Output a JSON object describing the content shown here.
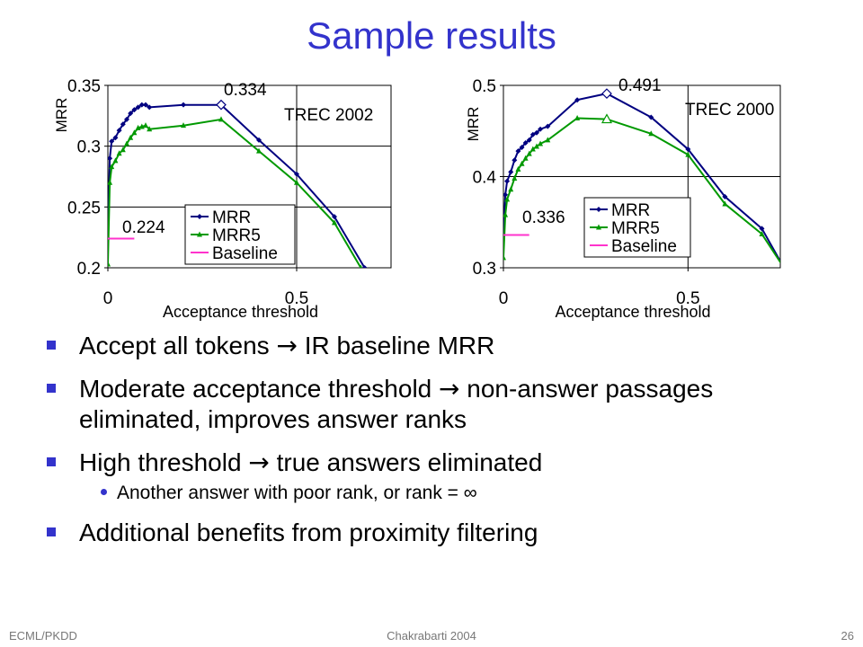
{
  "title": "Sample results",
  "chart_data": [
    {
      "type": "line",
      "title": "TREC 2002",
      "xlabel": "Acceptance threshold",
      "ylabel": "MRR",
      "xlim": [
        0,
        0.75
      ],
      "ylim": [
        0.2,
        0.35
      ],
      "x_ticks": [
        "0",
        "0.5"
      ],
      "y_ticks": [
        "0.2",
        "0.25",
        "0.3",
        "0.35"
      ],
      "legend": [
        "MRR",
        "MRR5",
        "Baseline"
      ],
      "legend_position": "bottom-center",
      "annotations": [
        "0.334",
        "0.224"
      ],
      "series": [
        {
          "name": "MRR",
          "color": "#000080",
          "x": [
            0,
            0.005,
            0.01,
            0.02,
            0.03,
            0.04,
            0.05,
            0.06,
            0.07,
            0.08,
            0.09,
            0.1,
            0.11,
            0.2,
            0.3,
            0.4,
            0.5,
            0.6,
            0.68
          ],
          "y": [
            0.224,
            0.29,
            0.304,
            0.307,
            0.313,
            0.318,
            0.322,
            0.327,
            0.33,
            0.332,
            0.334,
            0.334,
            0.332,
            0.334,
            0.334,
            0.305,
            0.277,
            0.242,
            0.2
          ]
        },
        {
          "name": "MRR5",
          "color": "#009900",
          "x": [
            0,
            0.005,
            0.01,
            0.02,
            0.03,
            0.04,
            0.05,
            0.06,
            0.07,
            0.08,
            0.09,
            0.1,
            0.11,
            0.2,
            0.3,
            0.4,
            0.5,
            0.6,
            0.67
          ],
          "y": [
            0.203,
            0.27,
            0.283,
            0.288,
            0.294,
            0.297,
            0.302,
            0.307,
            0.311,
            0.315,
            0.316,
            0.317,
            0.314,
            0.317,
            0.322,
            0.296,
            0.27,
            0.237,
            0.2
          ]
        },
        {
          "name": "Baseline",
          "color": "#ff33cc",
          "x": [
            0,
            0.07
          ],
          "y": [
            0.224,
            0.224
          ]
        }
      ],
      "grid": true
    },
    {
      "type": "line",
      "title": "TREC 2000",
      "xlabel": "Acceptance threshold",
      "ylabel": "MRR",
      "xlim": [
        0,
        0.75
      ],
      "ylim": [
        0.3,
        0.5
      ],
      "x_ticks": [
        "0",
        "0.5"
      ],
      "y_ticks": [
        "0.3",
        "0.4",
        "0.5"
      ],
      "legend": [
        "MRR",
        "MRR5",
        "Baseline"
      ],
      "legend_position": "bottom-right",
      "annotations": [
        "0.491",
        "0.336"
      ],
      "series": [
        {
          "name": "MRR",
          "color": "#000080",
          "x": [
            0,
            0.005,
            0.01,
            0.02,
            0.03,
            0.04,
            0.05,
            0.06,
            0.07,
            0.08,
            0.09,
            0.1,
            0.12,
            0.2,
            0.28,
            0.4,
            0.5,
            0.6,
            0.7,
            0.76
          ],
          "y": [
            0.336,
            0.38,
            0.395,
            0.405,
            0.418,
            0.428,
            0.432,
            0.437,
            0.44,
            0.446,
            0.448,
            0.452,
            0.455,
            0.484,
            0.491,
            0.465,
            0.43,
            0.378,
            0.343,
            0.3
          ]
        },
        {
          "name": "MRR5",
          "color": "#009900",
          "x": [
            0,
            0.005,
            0.01,
            0.02,
            0.03,
            0.04,
            0.05,
            0.06,
            0.07,
            0.08,
            0.09,
            0.1,
            0.12,
            0.2,
            0.28,
            0.4,
            0.5,
            0.6,
            0.7,
            0.76
          ],
          "y": [
            0.311,
            0.358,
            0.375,
            0.386,
            0.398,
            0.408,
            0.414,
            0.42,
            0.425,
            0.43,
            0.433,
            0.436,
            0.44,
            0.464,
            0.463,
            0.447,
            0.424,
            0.37,
            0.337,
            0.3
          ]
        },
        {
          "name": "Baseline",
          "color": "#ff33cc",
          "x": [
            0,
            0.07
          ],
          "y": [
            0.336,
            0.336
          ]
        }
      ],
      "grid": true
    }
  ],
  "bullets": [
    {
      "pre": "Accept all tokens ",
      "arrow": "→",
      "post": " IR baseline MRR"
    },
    {
      "pre": "Moderate acceptance threshold ",
      "arrow": "→",
      "post": " non-answer passages eliminated, improves answer ranks"
    },
    {
      "pre": "High threshold ",
      "arrow": "→",
      "post": " true answers eliminated"
    }
  ],
  "sub_bullet": "Another answer with poor rank, or rank = ∞",
  "last_bullet": "Additional benefits from proximity filtering",
  "footer": {
    "left": "ECML/PKDD",
    "center": "Chakrabarti 2004",
    "right": "26"
  },
  "colors": {
    "title": "#3333cc",
    "bullet": "#3333cc",
    "mrr": "#000080",
    "mrr5": "#009900",
    "baseline": "#ff33cc"
  }
}
